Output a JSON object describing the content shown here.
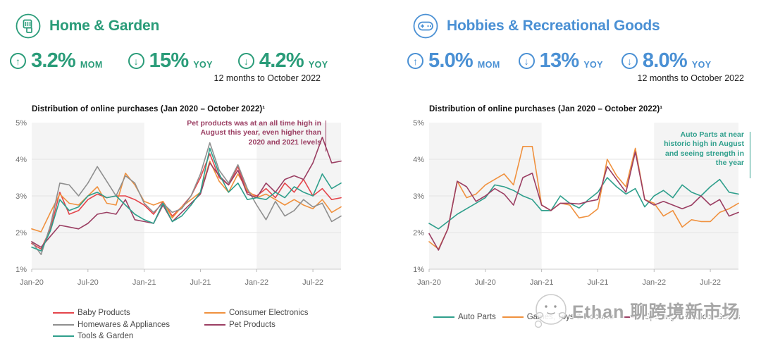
{
  "panels": [
    {
      "title": "Home & Garden",
      "accent": "#2a9c79",
      "icon": "garden-tool-icon",
      "stats": [
        {
          "direction": "up",
          "arrow": "↑",
          "value": "3.2%",
          "unit": "MOM"
        },
        {
          "direction": "down",
          "arrow": "↓",
          "value": "15%",
          "unit": "YOY"
        },
        {
          "direction": "down",
          "arrow": "↓",
          "value": "4.2%",
          "unit": "YOY"
        }
      ],
      "period_note": "12 months to October 2022",
      "annotation": {
        "text": "Pet products was at an all time high in August this year, even higher than 2020 and 2021 levels",
        "color": "#9b3f63"
      }
    },
    {
      "title": "Hobbies & Recreational Goods",
      "accent": "#4a90d4",
      "icon": "game-controller-icon",
      "stats": [
        {
          "direction": "up",
          "arrow": "↑",
          "value": "5.0%",
          "unit": "MOM"
        },
        {
          "direction": "down",
          "arrow": "↓",
          "value": "13%",
          "unit": "YOY"
        },
        {
          "direction": "down",
          "arrow": "↓",
          "value": "8.0%",
          "unit": "YOY"
        }
      ],
      "period_note": "12 months to October 2022",
      "annotation": {
        "text": "Auto Parts at near historic high in August and seeing strength in the year",
        "color": "#2f9f8c"
      }
    }
  ],
  "watermark": {
    "icon": "wechat-sticker-icon",
    "text": "Ethan 聊跨境新市场"
  },
  "chart_data": [
    {
      "type": "line",
      "title": "Distribution of online purchases (Jan 2020 – October 2022)¹",
      "xlabel": "",
      "ylabel": "",
      "ylim": [
        1,
        5
      ],
      "yticks": [
        "1%",
        "2%",
        "3%",
        "4%",
        "5%"
      ],
      "x": [
        "Jan-20",
        "Feb-20",
        "Mar-20",
        "Apr-20",
        "May-20",
        "Jun-20",
        "Jul-20",
        "Aug-20",
        "Sep-20",
        "Oct-20",
        "Nov-20",
        "Dec-20",
        "Jan-21",
        "Feb-21",
        "Mar-21",
        "Apr-21",
        "May-21",
        "Jun-21",
        "Jul-21",
        "Aug-21",
        "Sep-21",
        "Oct-21",
        "Nov-21",
        "Dec-21",
        "Jan-22",
        "Feb-22",
        "Mar-22",
        "Apr-22",
        "May-22",
        "Jun-22",
        "Jul-22",
        "Aug-22",
        "Sep-22",
        "Oct-22"
      ],
      "x_tick_indices": [
        0,
        6,
        12,
        18,
        24,
        30
      ],
      "shaded_bands": [
        [
          0,
          12
        ],
        [
          24,
          33
        ]
      ],
      "grid": true,
      "legend_position": "bottom",
      "series": [
        {
          "name": "Baby Products",
          "color": "#e4454b",
          "values": [
            1.7,
            1.55,
            2.1,
            3.1,
            2.5,
            2.6,
            2.9,
            3.05,
            2.95,
            3.0,
            3.0,
            2.9,
            2.75,
            2.5,
            2.85,
            2.45,
            2.7,
            3.0,
            3.5,
            4.15,
            3.5,
            3.3,
            3.8,
            3.1,
            3.0,
            3.2,
            2.95,
            3.35,
            3.1,
            3.45,
            3.0,
            3.2,
            2.9,
            2.95
          ]
        },
        {
          "name": "Consumer Electronics",
          "color": "#f0913e",
          "values": [
            2.1,
            2.02,
            2.55,
            3.05,
            2.8,
            2.75,
            3.0,
            3.25,
            2.8,
            2.75,
            3.62,
            3.3,
            2.85,
            2.75,
            2.85,
            2.4,
            2.7,
            2.9,
            3.1,
            3.95,
            3.4,
            3.1,
            3.6,
            3.15,
            2.95,
            3.05,
            2.9,
            2.75,
            2.9,
            2.75,
            2.65,
            2.9,
            2.55,
            2.7
          ]
        },
        {
          "name": "Homewares & Appliances",
          "color": "#8f8f8f",
          "values": [
            1.75,
            1.4,
            2.2,
            3.35,
            3.3,
            3.0,
            3.35,
            3.8,
            3.4,
            3.0,
            3.55,
            3.35,
            2.8,
            2.55,
            2.8,
            2.55,
            2.65,
            3.0,
            3.6,
            4.45,
            3.7,
            3.35,
            3.85,
            3.2,
            2.75,
            2.35,
            2.85,
            2.45,
            2.6,
            2.9,
            2.7,
            2.8,
            2.3,
            2.45
          ]
        },
        {
          "name": "Pet Products",
          "color": "#9b3f63",
          "values": [
            1.75,
            1.6,
            1.9,
            2.2,
            2.15,
            2.1,
            2.25,
            2.5,
            2.55,
            2.5,
            2.9,
            2.35,
            2.3,
            2.25,
            2.75,
            2.3,
            2.55,
            2.8,
            3.05,
            3.9,
            3.55,
            3.3,
            3.7,
            3.05,
            2.95,
            3.35,
            3.1,
            3.45,
            3.55,
            3.45,
            3.9,
            4.6,
            3.9,
            3.95
          ]
        },
        {
          "name": "Tools & Garden",
          "color": "#2f9f8c",
          "values": [
            1.6,
            1.5,
            2.05,
            2.9,
            2.6,
            2.7,
            3.0,
            3.1,
            2.95,
            3.0,
            2.75,
            2.5,
            2.35,
            2.25,
            2.8,
            2.3,
            2.45,
            2.75,
            3.1,
            4.3,
            3.6,
            3.1,
            3.35,
            2.9,
            2.95,
            2.9,
            3.1,
            2.95,
            3.25,
            3.1,
            3.0,
            3.6,
            3.2,
            3.35
          ]
        }
      ]
    },
    {
      "type": "line",
      "title": "Distribution of online purchases (Jan 2020 – October 2022)¹",
      "xlabel": "",
      "ylabel": "",
      "ylim": [
        1,
        5
      ],
      "yticks": [
        "1%",
        "2%",
        "3%",
        "4%",
        "5%"
      ],
      "x": [
        "Jan-20",
        "Feb-20",
        "Mar-20",
        "Apr-20",
        "May-20",
        "Jun-20",
        "Jul-20",
        "Aug-20",
        "Sep-20",
        "Oct-20",
        "Nov-20",
        "Dec-20",
        "Jan-21",
        "Feb-21",
        "Mar-21",
        "Apr-21",
        "May-21",
        "Jun-21",
        "Jul-21",
        "Aug-21",
        "Sep-21",
        "Oct-21",
        "Nov-21",
        "Dec-21",
        "Jan-22",
        "Feb-22",
        "Mar-22",
        "Apr-22",
        "May-22",
        "Jun-22",
        "Jul-22",
        "Aug-22",
        "Sep-22",
        "Oct-22"
      ],
      "x_tick_indices": [
        0,
        6,
        12,
        18,
        24,
        30
      ],
      "shaded_bands": [
        [
          0,
          12
        ],
        [
          24,
          33
        ]
      ],
      "grid": true,
      "legend_position": "bottom",
      "series": [
        {
          "name": "Auto Parts",
          "color": "#2f9f8c",
          "values": [
            2.25,
            2.1,
            2.3,
            2.5,
            2.65,
            2.8,
            2.95,
            3.3,
            3.25,
            3.15,
            3.0,
            2.9,
            2.6,
            2.6,
            3.0,
            2.8,
            2.67,
            2.9,
            3.1,
            3.5,
            3.25,
            3.05,
            3.2,
            2.7,
            3.0,
            3.15,
            2.95,
            3.3,
            3.1,
            3.0,
            3.25,
            3.45,
            3.1,
            3.05
          ]
        },
        {
          "name": "Games, Toys & Hobbies",
          "color": "#f0913e",
          "values": [
            1.75,
            1.55,
            2.1,
            3.4,
            2.95,
            3.05,
            3.3,
            3.45,
            3.6,
            3.3,
            4.35,
            4.35,
            2.75,
            2.6,
            2.8,
            2.75,
            2.4,
            2.45,
            2.65,
            4.0,
            3.55,
            3.25,
            4.3,
            2.9,
            2.8,
            2.45,
            2.6,
            2.15,
            2.35,
            2.3,
            2.3,
            2.55,
            2.65,
            2.8
          ]
        },
        {
          "name": "Sporting & Outdoor Goods",
          "color": "#9b3f63",
          "values": [
            1.97,
            1.52,
            2.1,
            3.4,
            3.25,
            2.85,
            3.0,
            3.2,
            3.05,
            2.75,
            3.5,
            3.62,
            2.75,
            2.6,
            2.8,
            2.8,
            2.78,
            2.85,
            2.9,
            3.8,
            3.45,
            3.1,
            4.2,
            2.9,
            2.75,
            2.85,
            2.75,
            2.65,
            2.75,
            3.0,
            2.75,
            2.9,
            2.45,
            2.55
          ]
        }
      ]
    }
  ]
}
